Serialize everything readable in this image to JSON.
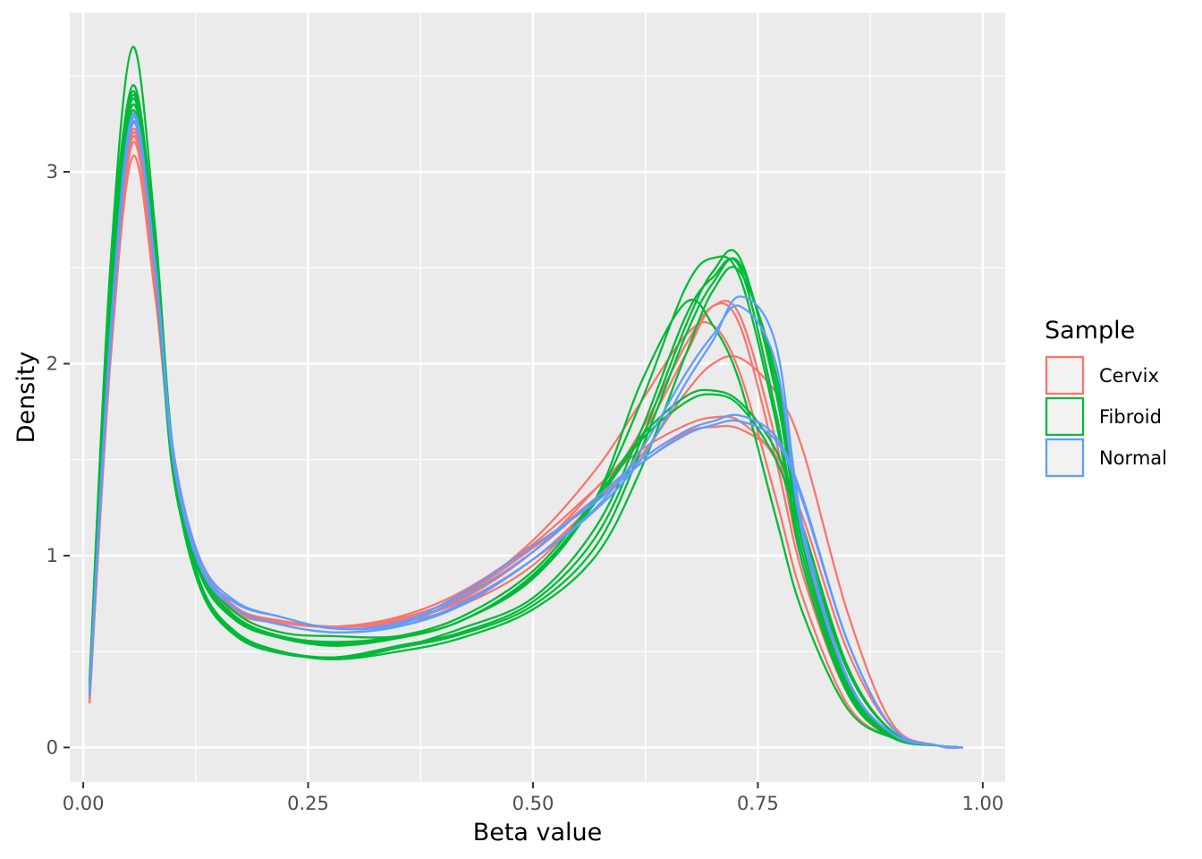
{
  "chart_data": {
    "type": "line",
    "subtype": "density",
    "xlabel": "Beta value",
    "ylabel": "Density",
    "xlim": [
      -0.015,
      1.025
    ],
    "ylim": [
      -0.18,
      3.83
    ],
    "x_ticks": [
      0.0,
      0.25,
      0.5,
      0.75,
      1.0
    ],
    "x_tick_labels": [
      "0.00",
      "0.25",
      "0.50",
      "0.75",
      "1.00"
    ],
    "y_ticks": [
      0,
      1,
      2,
      3
    ],
    "y_tick_labels": [
      "0",
      "1",
      "2",
      "3"
    ],
    "grid": true,
    "legend": {
      "title": "Sample",
      "position": "right",
      "entries": [
        {
          "label": "Cervix",
          "color": "#F8766D"
        },
        {
          "label": "Fibroid",
          "color": "#00BA38"
        },
        {
          "label": "Normal",
          "color": "#619CFF"
        }
      ]
    },
    "x": [
      0.007,
      0.03,
      0.055,
      0.08,
      0.1,
      0.13,
      0.17,
      0.22,
      0.28,
      0.35,
      0.42,
      0.5,
      0.57,
      0.62,
      0.67,
      0.7,
      0.73,
      0.77,
      0.8,
      0.85,
      0.9,
      0.95,
      0.978
    ],
    "series": [
      {
        "group": "Cervix",
        "values": [
          0.23,
          2.0,
          3.08,
          2.35,
          1.5,
          0.95,
          0.72,
          0.66,
          0.63,
          0.66,
          0.77,
          1.02,
          1.35,
          1.62,
          2.05,
          2.3,
          2.2,
          1.5,
          0.9,
          0.28,
          0.06,
          0.01,
          0.0
        ]
      },
      {
        "group": "Cervix",
        "values": [
          0.25,
          2.05,
          3.2,
          2.45,
          1.55,
          0.98,
          0.73,
          0.66,
          0.63,
          0.67,
          0.79,
          1.08,
          1.45,
          1.8,
          2.15,
          2.2,
          1.95,
          1.3,
          0.78,
          0.22,
          0.05,
          0.01,
          0.0
        ]
      },
      {
        "group": "Cervix",
        "values": [
          0.26,
          2.05,
          3.22,
          2.45,
          1.5,
          0.92,
          0.7,
          0.65,
          0.63,
          0.68,
          0.81,
          1.06,
          1.35,
          1.55,
          1.68,
          1.72,
          1.7,
          1.5,
          1.1,
          0.4,
          0.08,
          0.01,
          0.0
        ]
      },
      {
        "group": "Cervix",
        "values": [
          0.27,
          2.08,
          3.25,
          2.48,
          1.52,
          0.94,
          0.71,
          0.65,
          0.63,
          0.67,
          0.79,
          1.04,
          1.3,
          1.48,
          1.64,
          1.67,
          1.66,
          1.52,
          1.2,
          0.5,
          0.1,
          0.01,
          0.0
        ]
      },
      {
        "group": "Cervix",
        "values": [
          0.25,
          2.02,
          3.18,
          2.42,
          1.48,
          0.93,
          0.71,
          0.65,
          0.63,
          0.66,
          0.76,
          0.98,
          1.28,
          1.52,
          1.85,
          2.0,
          2.03,
          1.85,
          1.55,
          0.7,
          0.12,
          0.01,
          0.0
        ]
      },
      {
        "group": "Cervix",
        "values": [
          0.24,
          2.0,
          3.15,
          2.4,
          1.5,
          0.95,
          0.72,
          0.66,
          0.63,
          0.65,
          0.74,
          0.95,
          1.3,
          1.65,
          2.1,
          2.3,
          2.25,
          1.6,
          0.95,
          0.3,
          0.06,
          0.01,
          0.0
        ]
      },
      {
        "group": "Fibroid",
        "values": [
          0.35,
          2.5,
          3.65,
          2.7,
          1.55,
          0.95,
          0.7,
          0.6,
          0.58,
          0.58,
          0.66,
          0.9,
          1.3,
          1.8,
          2.4,
          2.55,
          2.45,
          1.7,
          0.95,
          0.28,
          0.05,
          0.01,
          0.0
        ]
      },
      {
        "group": "Fibroid",
        "values": [
          0.33,
          2.4,
          3.45,
          2.62,
          1.5,
          0.85,
          0.6,
          0.5,
          0.46,
          0.52,
          0.62,
          0.78,
          1.15,
          1.65,
          2.25,
          2.45,
          2.5,
          1.75,
          1.0,
          0.3,
          0.06,
          0.01,
          0.0
        ]
      },
      {
        "group": "Fibroid",
        "values": [
          0.32,
          2.35,
          3.4,
          2.58,
          1.48,
          0.84,
          0.59,
          0.5,
          0.47,
          0.53,
          0.6,
          0.76,
          1.1,
          1.6,
          2.2,
          2.48,
          2.55,
          1.85,
          1.05,
          0.32,
          0.06,
          0.01,
          0.0
        ]
      },
      {
        "group": "Fibroid",
        "values": [
          0.3,
          2.3,
          3.35,
          2.55,
          1.45,
          0.83,
          0.58,
          0.49,
          0.47,
          0.52,
          0.59,
          0.74,
          1.05,
          1.55,
          2.15,
          2.42,
          2.52,
          1.9,
          1.1,
          0.33,
          0.06,
          0.01,
          0.0
        ]
      },
      {
        "group": "Fibroid",
        "values": [
          0.33,
          2.45,
          3.42,
          2.6,
          1.5,
          0.86,
          0.6,
          0.5,
          0.46,
          0.5,
          0.57,
          0.72,
          1.0,
          1.45,
          2.05,
          2.38,
          2.48,
          1.95,
          1.15,
          0.35,
          0.06,
          0.01,
          0.0
        ]
      },
      {
        "group": "Fibroid",
        "values": [
          0.31,
          2.35,
          3.38,
          2.58,
          1.48,
          0.9,
          0.66,
          0.57,
          0.53,
          0.57,
          0.66,
          0.88,
          1.3,
          1.9,
          2.32,
          2.2,
          1.9,
          1.2,
          0.7,
          0.2,
          0.05,
          0.01,
          0.0
        ]
      },
      {
        "group": "Fibroid",
        "values": [
          0.3,
          2.3,
          3.32,
          2.5,
          1.42,
          0.92,
          0.68,
          0.58,
          0.55,
          0.58,
          0.68,
          0.92,
          1.3,
          1.62,
          1.83,
          1.86,
          1.8,
          1.55,
          1.15,
          0.42,
          0.08,
          0.01,
          0.0
        ]
      },
      {
        "group": "Fibroid",
        "values": [
          0.29,
          2.28,
          3.3,
          2.48,
          1.42,
          0.9,
          0.67,
          0.57,
          0.54,
          0.57,
          0.66,
          0.89,
          1.28,
          1.6,
          1.8,
          1.84,
          1.78,
          1.5,
          1.1,
          0.4,
          0.08,
          0.01,
          0.0
        ]
      },
      {
        "group": "Normal",
        "values": [
          0.28,
          2.1,
          3.28,
          2.5,
          1.5,
          0.95,
          0.75,
          0.68,
          0.62,
          0.64,
          0.78,
          1.02,
          1.3,
          1.5,
          1.65,
          1.7,
          1.73,
          1.62,
          1.3,
          0.55,
          0.1,
          0.01,
          0.0
        ]
      },
      {
        "group": "Normal",
        "values": [
          0.3,
          2.15,
          3.3,
          2.52,
          1.55,
          0.98,
          0.76,
          0.68,
          0.62,
          0.65,
          0.8,
          1.05,
          1.28,
          1.48,
          1.63,
          1.68,
          1.7,
          1.6,
          1.28,
          0.55,
          0.1,
          0.01,
          0.0
        ]
      },
      {
        "group": "Normal",
        "values": [
          0.27,
          2.08,
          3.25,
          2.48,
          1.5,
          0.94,
          0.72,
          0.64,
          0.6,
          0.63,
          0.74,
          0.98,
          1.25,
          1.55,
          1.95,
          2.15,
          2.3,
          2.0,
          1.1,
          0.35,
          0.07,
          0.01,
          0.0
        ]
      },
      {
        "group": "Normal",
        "values": [
          0.28,
          2.1,
          3.26,
          2.5,
          1.52,
          0.95,
          0.72,
          0.64,
          0.6,
          0.63,
          0.75,
          0.98,
          1.24,
          1.5,
          1.9,
          2.12,
          2.35,
          2.1,
          1.15,
          0.36,
          0.07,
          0.01,
          0.0
        ]
      }
    ]
  }
}
